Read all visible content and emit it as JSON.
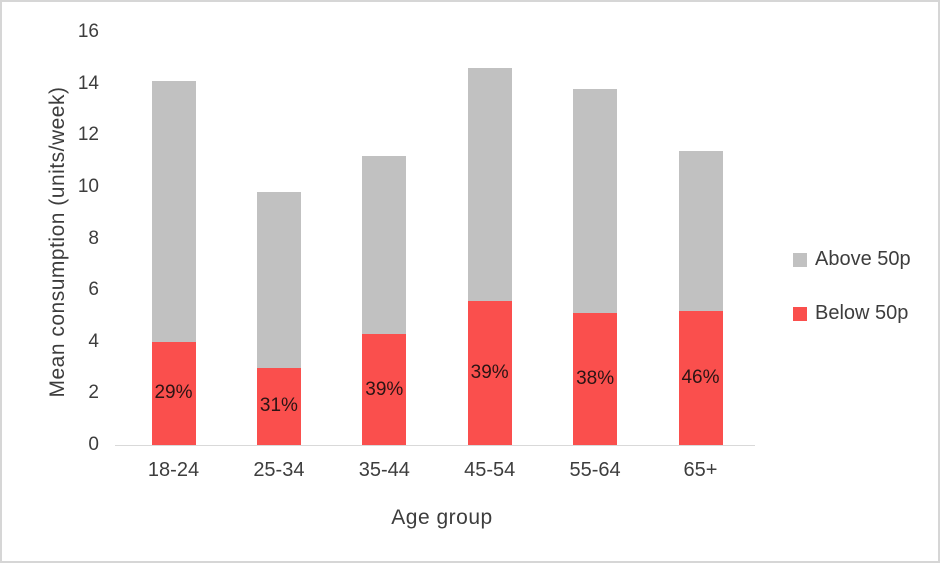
{
  "chart_data": {
    "type": "bar",
    "stacked": true,
    "title": "",
    "xlabel": "Age group",
    "ylabel": "Mean consumption (units/week)",
    "categories": [
      "18-24",
      "25-34",
      "35-44",
      "45-54",
      "55-64",
      "65+"
    ],
    "series": [
      {
        "name": "Below 50p",
        "color": "#fa4f4d",
        "values": [
          4.0,
          3.0,
          4.3,
          5.6,
          5.1,
          5.2
        ]
      },
      {
        "name": "Above 50p",
        "color": "#c1c1c1",
        "values": [
          10.1,
          6.8,
          6.9,
          9.0,
          8.7,
          6.2
        ]
      }
    ],
    "totals": [
      14.1,
      9.8,
      11.2,
      14.6,
      13.8,
      11.4
    ],
    "bar_labels": [
      "29%",
      "31%",
      "39%",
      "39%",
      "38%",
      "46%"
    ],
    "ylim": [
      0,
      16
    ],
    "yticks": [
      0,
      2,
      4,
      6,
      8,
      10,
      12,
      14,
      16
    ],
    "grid": false,
    "legend_position": "right",
    "legend_order": [
      "Above 50p",
      "Below 50p"
    ]
  }
}
